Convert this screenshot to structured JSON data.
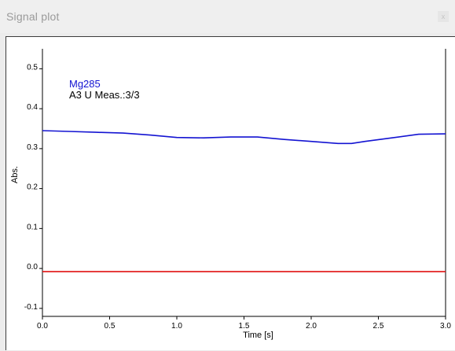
{
  "window": {
    "title": "Signal plot",
    "close_glyph": "x"
  },
  "chart_data": {
    "type": "line",
    "xlabel": "Time [s]",
    "ylabel": "Abs.",
    "xlim": [
      0.0,
      3.0
    ],
    "ylim": [
      -0.12,
      0.55
    ],
    "xticks": [
      0.0,
      0.5,
      1.0,
      1.5,
      2.0,
      2.5,
      3.0
    ],
    "xtick_labels": [
      "0.0",
      "0.5",
      "1.0",
      "1.5",
      "2.0",
      "2.5",
      "3.0"
    ],
    "yticks": [
      -0.1,
      0.0,
      0.1,
      0.2,
      0.3,
      0.4,
      0.5
    ],
    "ytick_labels": [
      "-0.1",
      "0.0",
      "0.1",
      "0.2",
      "0.3",
      "0.4",
      "0.5"
    ],
    "grid": false,
    "annotations": {
      "line1": "Mg285",
      "line2": "A3 U Meas.:3/3"
    },
    "series": [
      {
        "color": "#1414d2",
        "x": [
          0.0,
          0.2,
          0.4,
          0.6,
          0.8,
          1.0,
          1.2,
          1.4,
          1.6,
          1.8,
          2.0,
          2.2,
          2.3,
          2.4,
          2.6,
          2.8,
          3.0
        ],
        "y": [
          0.345,
          0.343,
          0.341,
          0.339,
          0.334,
          0.328,
          0.327,
          0.329,
          0.329,
          0.323,
          0.318,
          0.313,
          0.313,
          0.318,
          0.327,
          0.336,
          0.337
        ]
      },
      {
        "color": "#e01010",
        "x": [
          0.0,
          3.0
        ],
        "y": [
          -0.008,
          -0.008
        ]
      }
    ]
  }
}
